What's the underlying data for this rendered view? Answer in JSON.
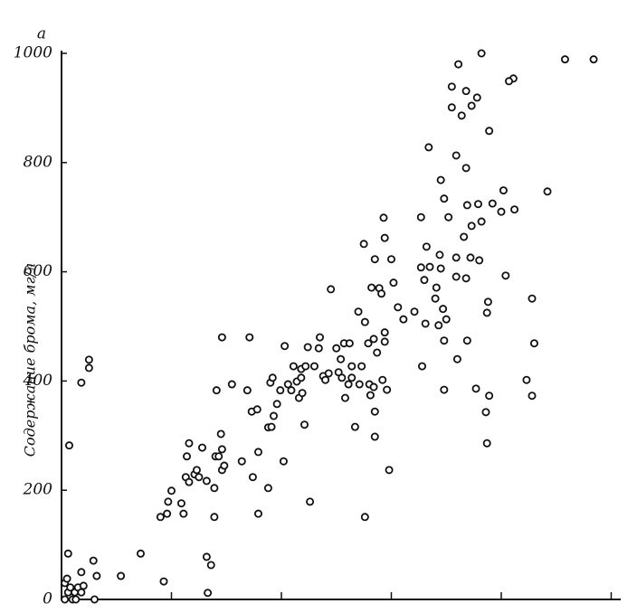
{
  "chart_data": {
    "type": "scatter",
    "title": "a",
    "y_label": "Содержание брома, мг/л",
    "x": [
      0.03,
      0.06,
      0.03,
      0.05,
      0.08,
      0.12,
      0.15,
      0.18,
      0.1,
      0.13,
      0.2,
      0.3,
      0.06,
      0.07,
      0.29,
      0.32,
      0.18,
      0.18,
      0.25,
      0.25,
      0.54,
      0.72,
      0.93,
      0.9,
      0.96,
      0.97,
      1.0,
      1.09,
      1.11,
      1.14,
      1.16,
      1.13,
      1.16,
      1.21,
      1.23,
      1.25,
      1.28,
      1.32,
      1.32,
      1.36,
      1.33,
      1.39,
      1.39,
      1.4,
      1.41,
      1.43,
      1.45,
      1.46,
      1.46,
      1.48,
      1.46,
      1.55,
      1.64,
      1.69,
      1.71,
      1.73,
      1.74,
      1.78,
      1.79,
      1.79,
      1.88,
      1.88,
      1.9,
      1.91,
      1.92,
      1.93,
      1.96,
      1.99,
      2.03,
      2.02,
      2.06,
      2.09,
      2.11,
      2.14,
      2.16,
      2.18,
      2.18,
      2.19,
      2.21,
      2.22,
      2.24,
      2.26,
      2.3,
      2.34,
      2.35,
      2.38,
      2.4,
      2.43,
      2.45,
      2.5,
      2.52,
      2.54,
      2.55,
      2.57,
      2.58,
      2.61,
      2.62,
      2.64,
      2.64,
      2.67,
      2.7,
      2.71,
      2.73,
      2.76,
      2.76,
      2.79,
      2.8,
      2.81,
      2.84,
      2.85,
      2.85,
      2.84,
      2.87,
      2.92,
      2.96,
      2.98,
      2.94,
      2.94,
      2.75,
      2.82,
      2.89,
      2.85,
      2.94,
      2.93,
      3.02,
      2.91,
      3.0,
      3.06,
      3.11,
      3.21,
      3.27,
      3.27,
      3.3,
      3.32,
      3.35,
      3.31,
      3.28,
      3.34,
      3.4,
      3.41,
      3.44,
      3.45,
      3.43,
      3.47,
      3.5,
      3.48,
      3.48,
      3.45,
      3.48,
      3.52,
      3.55,
      3.55,
      3.61,
      3.64,
      3.68,
      3.73,
      3.78,
      3.82,
      3.89,
      3.59,
      3.68,
      3.69,
      3.79,
      3.92,
      4.0,
      4.02,
      4.12,
      4.11,
      4.07,
      4.42,
      4.58,
      4.84,
      3.82,
      3.66,
      3.73,
      3.59,
      3.72,
      3.8,
      3.59,
      3.68,
      4.04,
      3.6,
      3.69,
      3.88,
      3.87,
      4.28,
      4.3,
      4.28,
      4.23,
      3.77,
      3.89,
      3.86,
      3.87
    ],
    "values": [
      0,
      13,
      30,
      38,
      22,
      13,
      22,
      13,
      0,
      0,
      25,
      0,
      84,
      282,
      71,
      43,
      50,
      397,
      439,
      424,
      43,
      84,
      33,
      151,
      157,
      179,
      199,
      176,
      157,
      262,
      286,
      224,
      215,
      229,
      237,
      224,
      278,
      217,
      78,
      63,
      12,
      151,
      204,
      262,
      383,
      262,
      303,
      275,
      237,
      245,
      480,
      394,
      253,
      383,
      480,
      344,
      224,
      348,
      157,
      270,
      204,
      315,
      397,
      316,
      406,
      336,
      358,
      383,
      464,
      253,
      394,
      383,
      427,
      399,
      369,
      406,
      422,
      378,
      320,
      427,
      462,
      179,
      427,
      460,
      480,
      409,
      402,
      414,
      568,
      460,
      416,
      440,
      406,
      469,
      369,
      394,
      469,
      427,
      406,
      316,
      527,
      394,
      427,
      151,
      508,
      469,
      394,
      374,
      389,
      298,
      344,
      477,
      452,
      402,
      384,
      237,
      489,
      472,
      651,
      571,
      570,
      623,
      662,
      699,
      580,
      560,
      623,
      535,
      513,
      527,
      700,
      608,
      585,
      646,
      609,
      505,
      427,
      828,
      551,
      571,
      631,
      606,
      502,
      532,
      513,
      474,
      384,
      768,
      734,
      700,
      901,
      939,
      980,
      886,
      931,
      904,
      919,
      1000,
      858,
      813,
      790,
      722,
      724,
      725,
      710,
      749,
      714,
      954,
      949,
      747,
      989,
      989,
      692,
      664,
      684,
      626,
      626,
      621,
      591,
      588,
      593,
      440,
      474,
      545,
      525,
      551,
      469,
      373,
      402,
      386,
      373,
      343,
      286
    ],
    "xlim": [
      0,
      5.07
    ],
    "xticks": [
      1,
      2,
      3,
      4,
      5
    ],
    "ylim": [
      0,
      1000
    ],
    "yticks": [
      0,
      200,
      400,
      600,
      800,
      1000
    ],
    "color": "#111111"
  }
}
